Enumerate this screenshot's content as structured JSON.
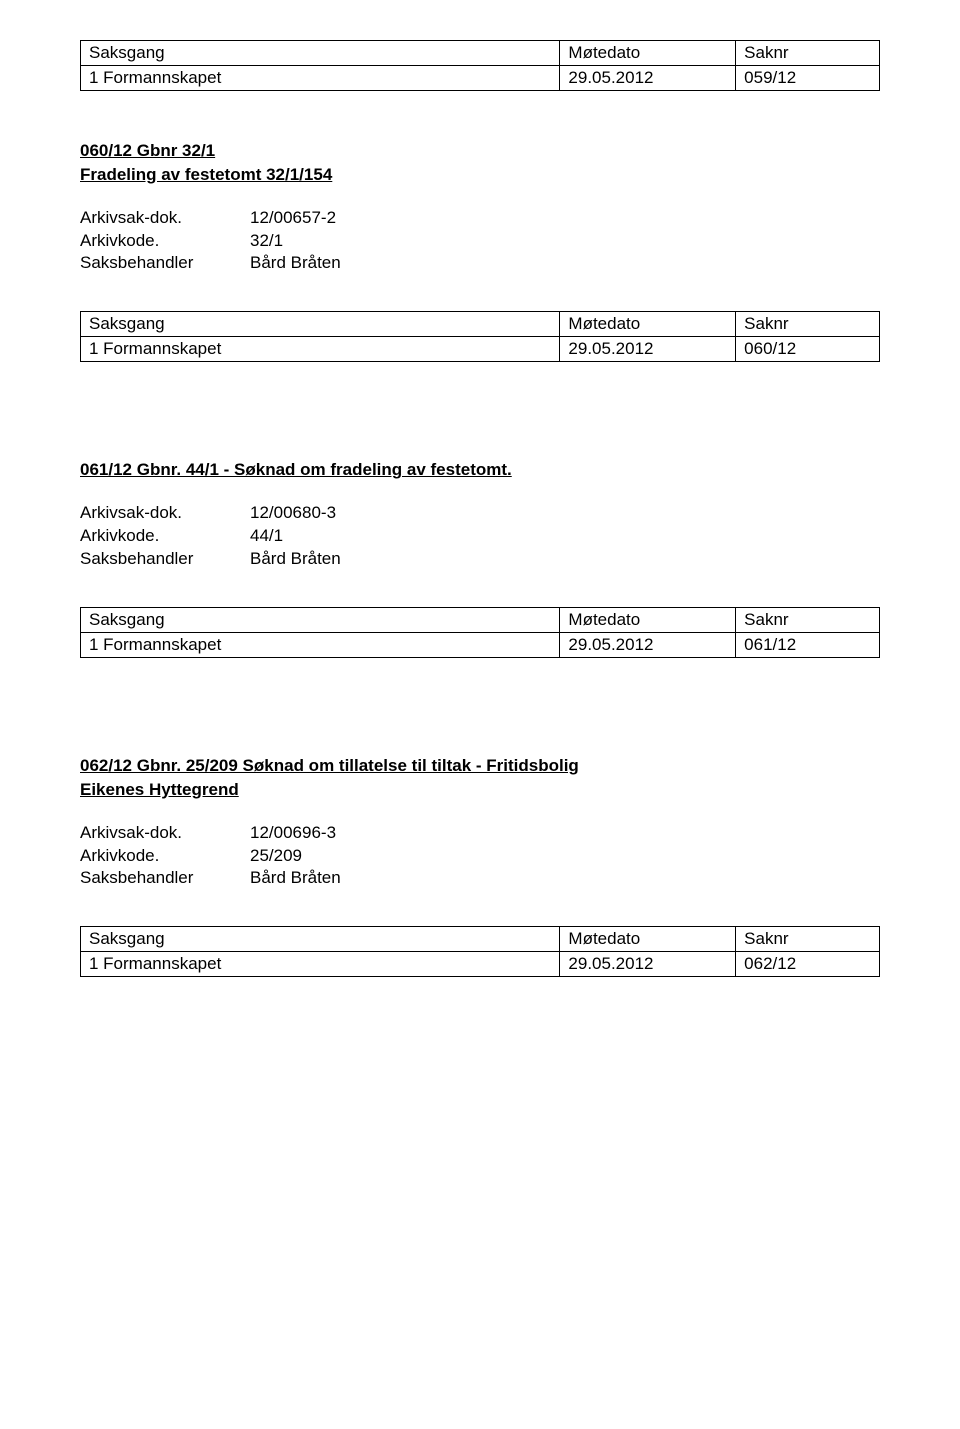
{
  "tables": {
    "headers": {
      "col1": "Saksgang",
      "col2": "Møtedato",
      "col3": "Saknr"
    },
    "row_prefix": "1 Formannskapet",
    "date": "29.05.2012",
    "saknr": [
      "059/12",
      "060/12",
      "061/12",
      "062/12"
    ]
  },
  "sections": [
    {
      "title_lines": [
        "060/12 Gbnr 32/1",
        "Fradeling av festetomt 32/1/154"
      ],
      "meta": {
        "arkivsak_label": "Arkivsak-dok.",
        "arkivsak_value": "12/00657-2",
        "arkivkode_label": "Arkivkode.",
        "arkivkode_value": "32/1",
        "saksbehandler_label": "Saksbehandler",
        "saksbehandler_value": "Bård Bråten"
      }
    },
    {
      "title_lines": [
        "061/12 Gbnr. 44/1 - Søknad om fradeling av festetomt."
      ],
      "meta": {
        "arkivsak_label": "Arkivsak-dok.",
        "arkivsak_value": "12/00680-3",
        "arkivkode_label": "Arkivkode.",
        "arkivkode_value": "44/1",
        "saksbehandler_label": "Saksbehandler",
        "saksbehandler_value": "Bård Bråten"
      }
    },
    {
      "title_lines": [
        "062/12 Gbnr. 25/209 Søknad om tillatelse til tiltak - Fritidsbolig",
        "Eikenes Hyttegrend"
      ],
      "meta": {
        "arkivsak_label": "Arkivsak-dok.",
        "arkivsak_value": "12/00696-3",
        "arkivkode_label": "Arkivkode.",
        "arkivkode_value": "25/209",
        "saksbehandler_label": "Saksbehandler",
        "saksbehandler_value": "Bård Bråten"
      }
    }
  ]
}
